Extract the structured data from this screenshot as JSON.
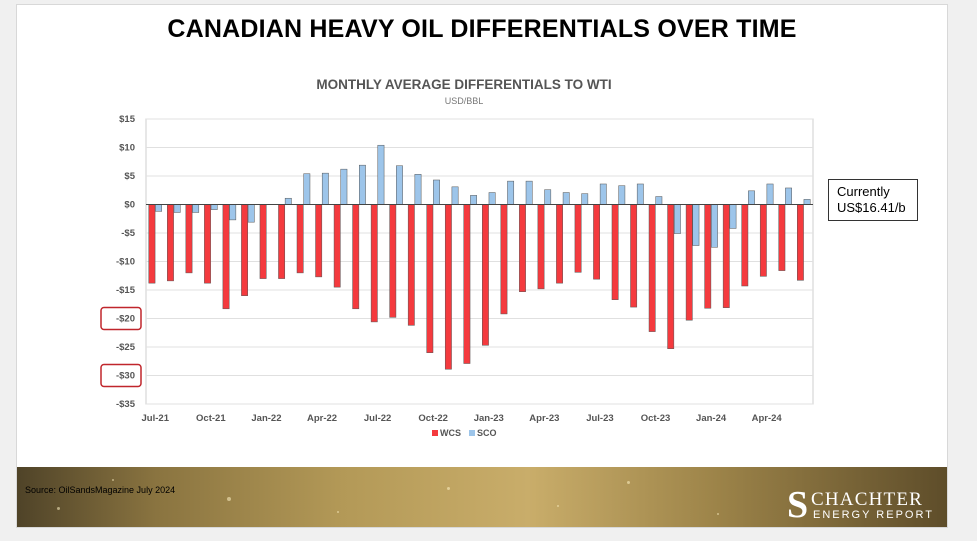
{
  "slide_title": "CANADIAN HEAVY OIL DIFFERENTIALS OVER TIME",
  "callout": {
    "line1": "Currently",
    "line2": "US$16.41/b"
  },
  "footer": {
    "source": "Source:  OilSandsMagazine July 2024",
    "logo_name": "SCHACHTER",
    "logo_initial": "S",
    "logo_rest": "CHACHTER",
    "logo_sub": "ENERGY REPORT"
  },
  "colors": {
    "wcs": "#f43a3e",
    "sco": "#9dc5ea",
    "highlight_box": "#c0262c"
  },
  "highlighted_ticks": [
    "-$20",
    "-$30"
  ],
  "chart_data": {
    "type": "bar",
    "title": "MONTHLY AVERAGE DIFFERENTIALS TO WTI",
    "subtitle": "USD/BBL",
    "ylim": [
      -35,
      15
    ],
    "yticks": [
      15,
      10,
      5,
      0,
      -5,
      -10,
      -15,
      -20,
      -25,
      -30,
      -35
    ],
    "ytick_labels": [
      "$15",
      "$10",
      "$5",
      "$0",
      "-$5",
      "-$10",
      "-$15",
      "-$20",
      "-$25",
      "-$30",
      "-$35"
    ],
    "categories": [
      "Jul-21",
      "Aug-21",
      "Sep-21",
      "Oct-21",
      "Nov-21",
      "Dec-21",
      "Jan-22",
      "Feb-22",
      "Mar-22",
      "Apr-22",
      "May-22",
      "Jun-22",
      "Jul-22",
      "Aug-22",
      "Sep-22",
      "Oct-22",
      "Nov-22",
      "Dec-22",
      "Jan-23",
      "Feb-23",
      "Mar-23",
      "Apr-23",
      "May-23",
      "Jun-23",
      "Jul-23",
      "Aug-23",
      "Sep-23",
      "Oct-23",
      "Nov-23",
      "Dec-23",
      "Jan-24",
      "Feb-24",
      "Mar-24",
      "Apr-24",
      "May-24",
      "Jun-24"
    ],
    "xtick_labels": [
      "Jul-21",
      "Oct-21",
      "Jan-22",
      "Apr-22",
      "Jul-22",
      "Oct-22",
      "Jan-23",
      "Apr-23",
      "Jul-23",
      "Oct-23",
      "Jan-24",
      "Apr-24"
    ],
    "xtick_indices": [
      0,
      3,
      6,
      9,
      12,
      15,
      18,
      21,
      24,
      27,
      30,
      33
    ],
    "series": [
      {
        "name": "WCS",
        "values": [
          -13.8,
          -13.4,
          -12,
          -13.8,
          -18.3,
          -16,
          -13,
          -13,
          -12,
          -12.7,
          -14.5,
          -18.3,
          -20.6,
          -19.8,
          -21.2,
          -26,
          -28.9,
          -27.9,
          -24.7,
          -19.2,
          -15.3,
          -14.8,
          -13.8,
          -11.9,
          -13.1,
          -16.7,
          -18,
          -22.3,
          -25.3,
          -20.3,
          -18.2,
          -18.1,
          -14.3,
          -12.6,
          -11.6,
          -13.3
        ]
      },
      {
        "name": "SCO",
        "values": [
          -1.2,
          -1.4,
          -1.4,
          -0.9,
          -2.7,
          -3.1,
          0,
          1.1,
          5.4,
          5.5,
          6.2,
          6.9,
          10.4,
          6.8,
          5.3,
          4.3,
          3.1,
          1.6,
          2.1,
          4.1,
          4.1,
          2.6,
          2.1,
          1.9,
          3.6,
          3.3,
          3.6,
          1.4,
          -5.1,
          -7.2,
          -7.5,
          -4.2,
          2.4,
          3.6,
          2.9,
          0.9
        ]
      }
    ],
    "legend": [
      "WCS",
      "SCO"
    ],
    "legend_position": "bottom",
    "grid": true
  }
}
